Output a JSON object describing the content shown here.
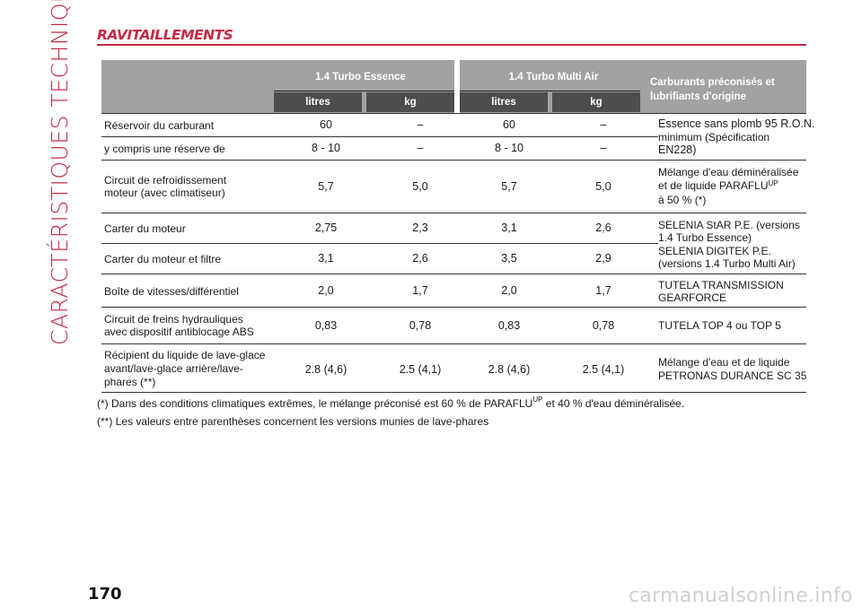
{
  "side_title": "CARACTÉRISTIQUES TECHNIQUES",
  "section_title": "RAVITAILLEMENTS",
  "table": {
    "group1": "1.4 Turbo Essence",
    "group2": "1.4 Turbo Multi Air",
    "sub": [
      "litres",
      "kg",
      "litres",
      "kg"
    ],
    "right_header_1": "Carburants préconisés et",
    "right_header_2": "lubrifiants d'origine",
    "rows": [
      {
        "label1": "Réservoir du carburant",
        "label2": "",
        "v": [
          "60",
          "–",
          "60",
          "–"
        ]
      },
      {
        "label1": "y compris une réserve de",
        "label2": "",
        "v": [
          "8 - 10",
          "–",
          "8 - 10",
          "–"
        ]
      },
      {
        "label1": "Circuit de refroidissement",
        "label2": "moteur (avec climatiseur)",
        "v": [
          "5,7",
          "5,0",
          "5,7",
          "5,0"
        ]
      },
      {
        "label1": "Carter du moteur",
        "label2": "",
        "v": [
          "2,75",
          "2,3",
          "3,1",
          "2,6"
        ]
      },
      {
        "label1": "Carter du moteur et filtre",
        "label2": "",
        "v": [
          "3,1",
          "2,6",
          "3,5",
          "2,9"
        ]
      },
      {
        "label1": "Boîte de vitesses/différentiel",
        "label2": "",
        "v": [
          "2,0",
          "1,7",
          "2,0",
          "1,7"
        ]
      },
      {
        "label1": "Circuit de freins hydrauliques",
        "label2": "avec dispositif antiblocage ABS",
        "v": [
          "0,83",
          "0,78",
          "0,83",
          "0,78"
        ]
      },
      {
        "label1": "Récipient du liquide de lave-glace",
        "label2": "avant/lave-glace arrière/lave-",
        "label3": "phares (**)",
        "v": [
          "2.8 (4,6)",
          "2.5 (4,1)",
          "2.8 (4,6)",
          "2.5 (4,1)"
        ]
      }
    ],
    "desc": {
      "fuel_1": "Essence sans plomb 95 R.O.N.",
      "fuel_2": "minimum (Spécification",
      "fuel_3": "EN228)",
      "cool_1": "Mélange d'eau déminéralisée",
      "cool_2": "et de liquide PARAFLU",
      "cool_sup": "UP",
      "cool_3": "à 50 % (*)",
      "oil_1": "SELENIA StAR P.E. (versions",
      "oil_2": "1.4 Turbo Essence)",
      "oil_3": "SELENIA DIGITEK P.E.",
      "oil_4": "(versions 1.4 Turbo Multi Air)",
      "gear_1": "TUTELA TRANSMISSION",
      "gear_2": "GEARFORCE",
      "brake_1": "TUTELA TOP 4 ou TOP 5",
      "wash_1": "Mélange d'eau et de liquide",
      "wash_2": "PETRONAS DURANCE SC 35"
    }
  },
  "notes": {
    "n1_a": "(*) Dans des conditions climatiques extrêmes, le mélange préconisé est 60 % de PARAFLU",
    "n1_sup": "UP",
    "n1_b": " et 40 % d'eau déminéralisée.",
    "n2": "(**) Les valeurs entre parenthèses concernent les versions munies de lave-phares"
  },
  "page_number": "170",
  "watermark": "carmanualsonline.info"
}
